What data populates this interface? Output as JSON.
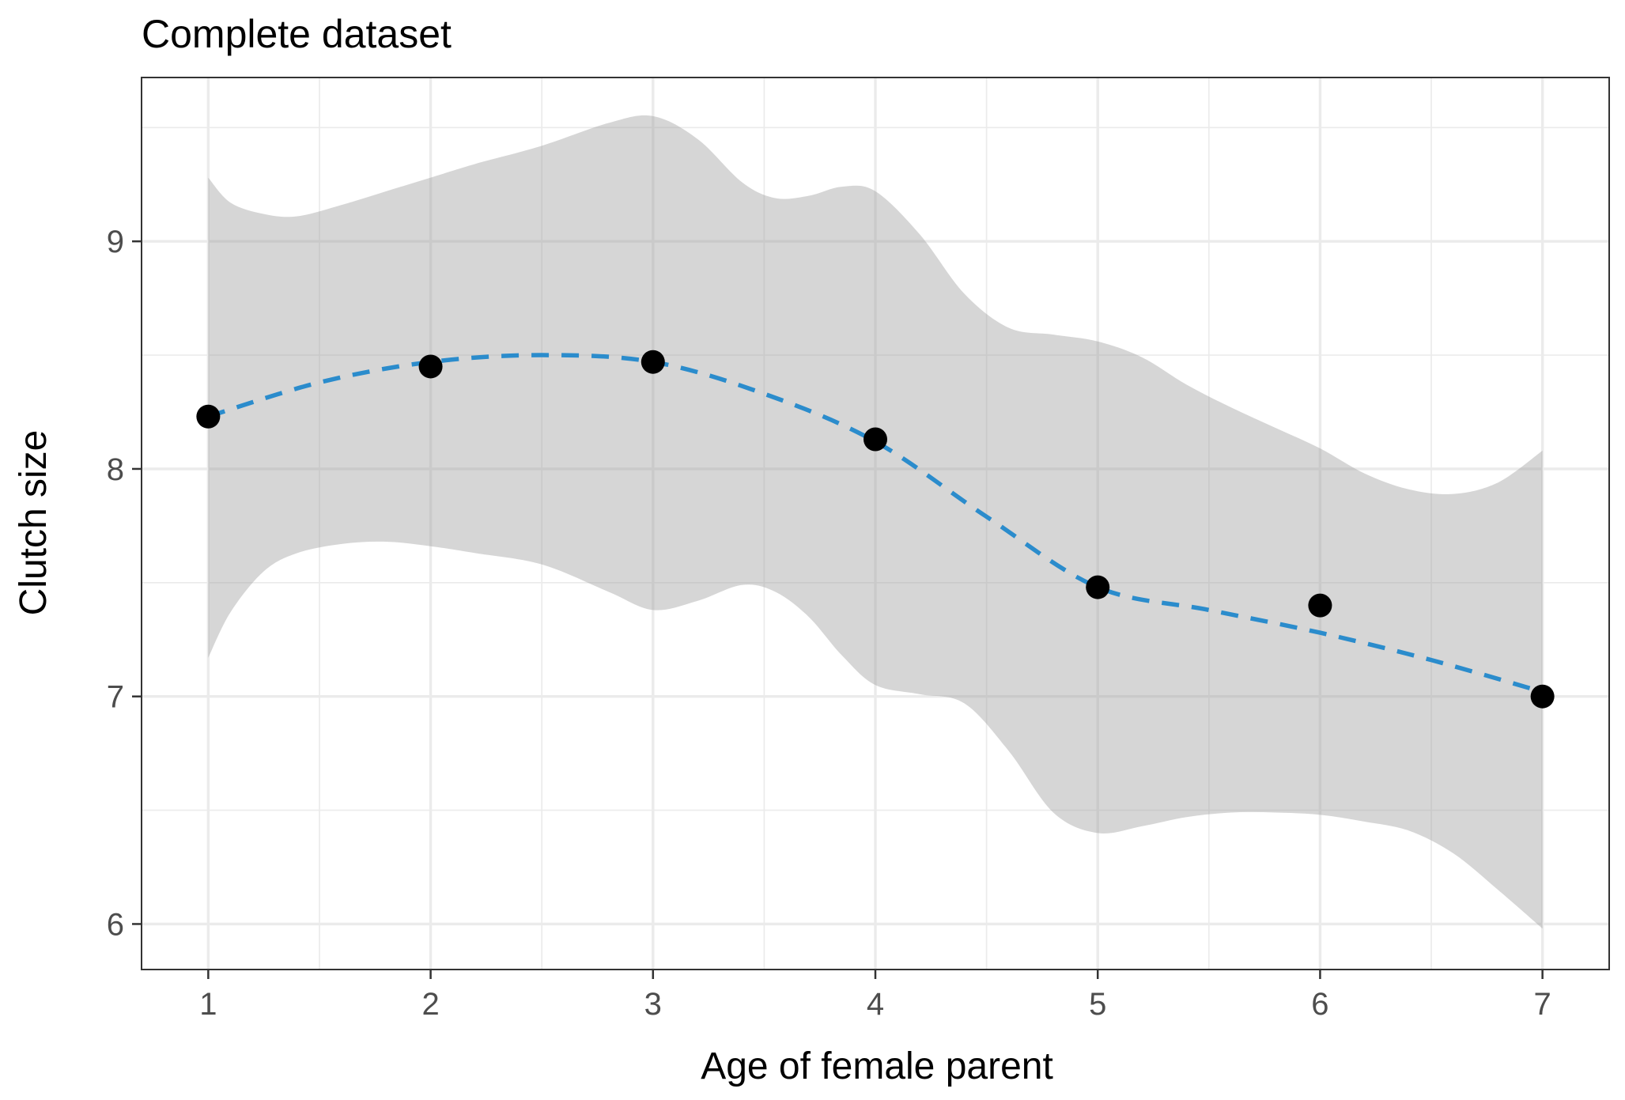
{
  "chart_data": {
    "type": "line",
    "title": "Complete dataset",
    "xlabel": "Age of female parent",
    "ylabel": "Clutch size",
    "xlim": [
      0.7,
      7.3
    ],
    "ylim": [
      5.8,
      9.72
    ],
    "x_ticks": [
      "1",
      "2",
      "3",
      "4",
      "5",
      "6",
      "7"
    ],
    "y_ticks": [
      "6",
      "7",
      "8",
      "9"
    ],
    "grid": true,
    "legend": "none",
    "points": {
      "x": [
        1,
        2,
        3,
        4,
        5,
        6,
        7
      ],
      "y": [
        8.23,
        8.45,
        8.47,
        8.13,
        7.48,
        7.4,
        7.0
      ]
    },
    "smooth_line": {
      "x": [
        1.0,
        1.5,
        2.0,
        2.5,
        3.0,
        3.5,
        4.0,
        4.5,
        5.0,
        5.5,
        6.0,
        6.5,
        7.0
      ],
      "y": [
        8.23,
        8.38,
        8.47,
        8.5,
        8.47,
        8.33,
        8.12,
        7.79,
        7.48,
        7.38,
        7.28,
        7.16,
        7.02
      ],
      "style": "dashed"
    },
    "confidence_band": {
      "x": [
        1.0,
        1.1,
        1.25,
        1.4,
        1.6,
        1.8,
        2.0,
        2.2,
        2.5,
        2.8,
        3.0,
        3.2,
        3.4,
        3.55,
        3.7,
        3.85,
        4.0,
        4.2,
        4.4,
        4.6,
        4.8,
        5.0,
        5.2,
        5.4,
        5.6,
        5.8,
        6.0,
        6.2,
        6.4,
        6.6,
        6.8,
        7.0
      ],
      "lower": [
        7.17,
        7.37,
        7.55,
        7.63,
        7.67,
        7.68,
        7.66,
        7.63,
        7.58,
        7.46,
        7.38,
        7.42,
        7.49,
        7.46,
        7.35,
        7.18,
        7.05,
        7.01,
        6.97,
        6.76,
        6.49,
        6.4,
        6.43,
        6.47,
        6.49,
        6.49,
        6.48,
        6.45,
        6.41,
        6.31,
        6.15,
        5.98
      ],
      "upper": [
        9.28,
        9.17,
        9.12,
        9.11,
        9.16,
        9.22,
        9.28,
        9.34,
        9.42,
        9.52,
        9.55,
        9.45,
        9.26,
        9.19,
        9.2,
        9.24,
        9.22,
        9.03,
        8.77,
        8.62,
        8.59,
        8.56,
        8.49,
        8.37,
        8.27,
        8.18,
        8.09,
        7.98,
        7.91,
        7.89,
        7.94,
        8.08
      ]
    },
    "colors": {
      "line": "#2b8ccc",
      "points": "#000000",
      "band": "#999999",
      "panel_border": "#333333"
    }
  }
}
